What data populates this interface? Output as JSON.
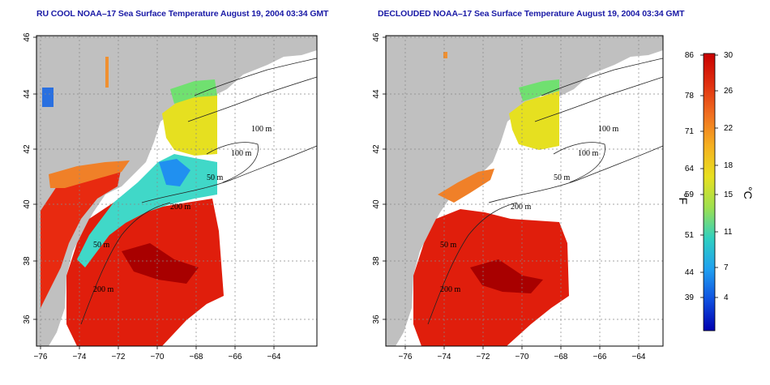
{
  "panels": [
    {
      "title": "RU COOL NOAA–17 Sea Surface Temperature August 19, 2004 03:34 GMT",
      "mode": "raw"
    },
    {
      "title": "DECLOUDED NOAA–17 Sea Surface Temperature August 19, 2004 03:34 GMT",
      "mode": "declouded"
    }
  ],
  "axes": {
    "x_ticks": [
      "−76",
      "−74",
      "−72",
      "−70",
      "−68",
      "−66",
      "−64"
    ],
    "y_ticks": [
      "36",
      "38",
      "40",
      "42",
      "44",
      "46"
    ]
  },
  "contours": [
    {
      "label": "100 m",
      "key": "c1"
    },
    {
      "label": "100 m",
      "key": "c2"
    },
    {
      "label": "50 m",
      "key": "c3"
    },
    {
      "label": "200 m",
      "key": "c4"
    },
    {
      "label": "50 m",
      "key": "c5"
    },
    {
      "label": "200 m",
      "key": "c6"
    }
  ],
  "colorbar": {
    "f_label": "°F",
    "c_label": "°C",
    "f_ticks": [
      "86",
      "78",
      "71",
      "64",
      "59",
      "51",
      "44",
      "39"
    ],
    "c_ticks": [
      "30",
      "26",
      "22",
      "18",
      "15",
      "11",
      "7",
      "4"
    ],
    "colors": [
      "#c80000",
      "#e03010",
      "#f07020",
      "#f5b020",
      "#e8e020",
      "#9ee050",
      "#30d0c0",
      "#20a0f0",
      "#1050e0",
      "#0000b0"
    ]
  },
  "land_color": "#c0c0c0"
}
